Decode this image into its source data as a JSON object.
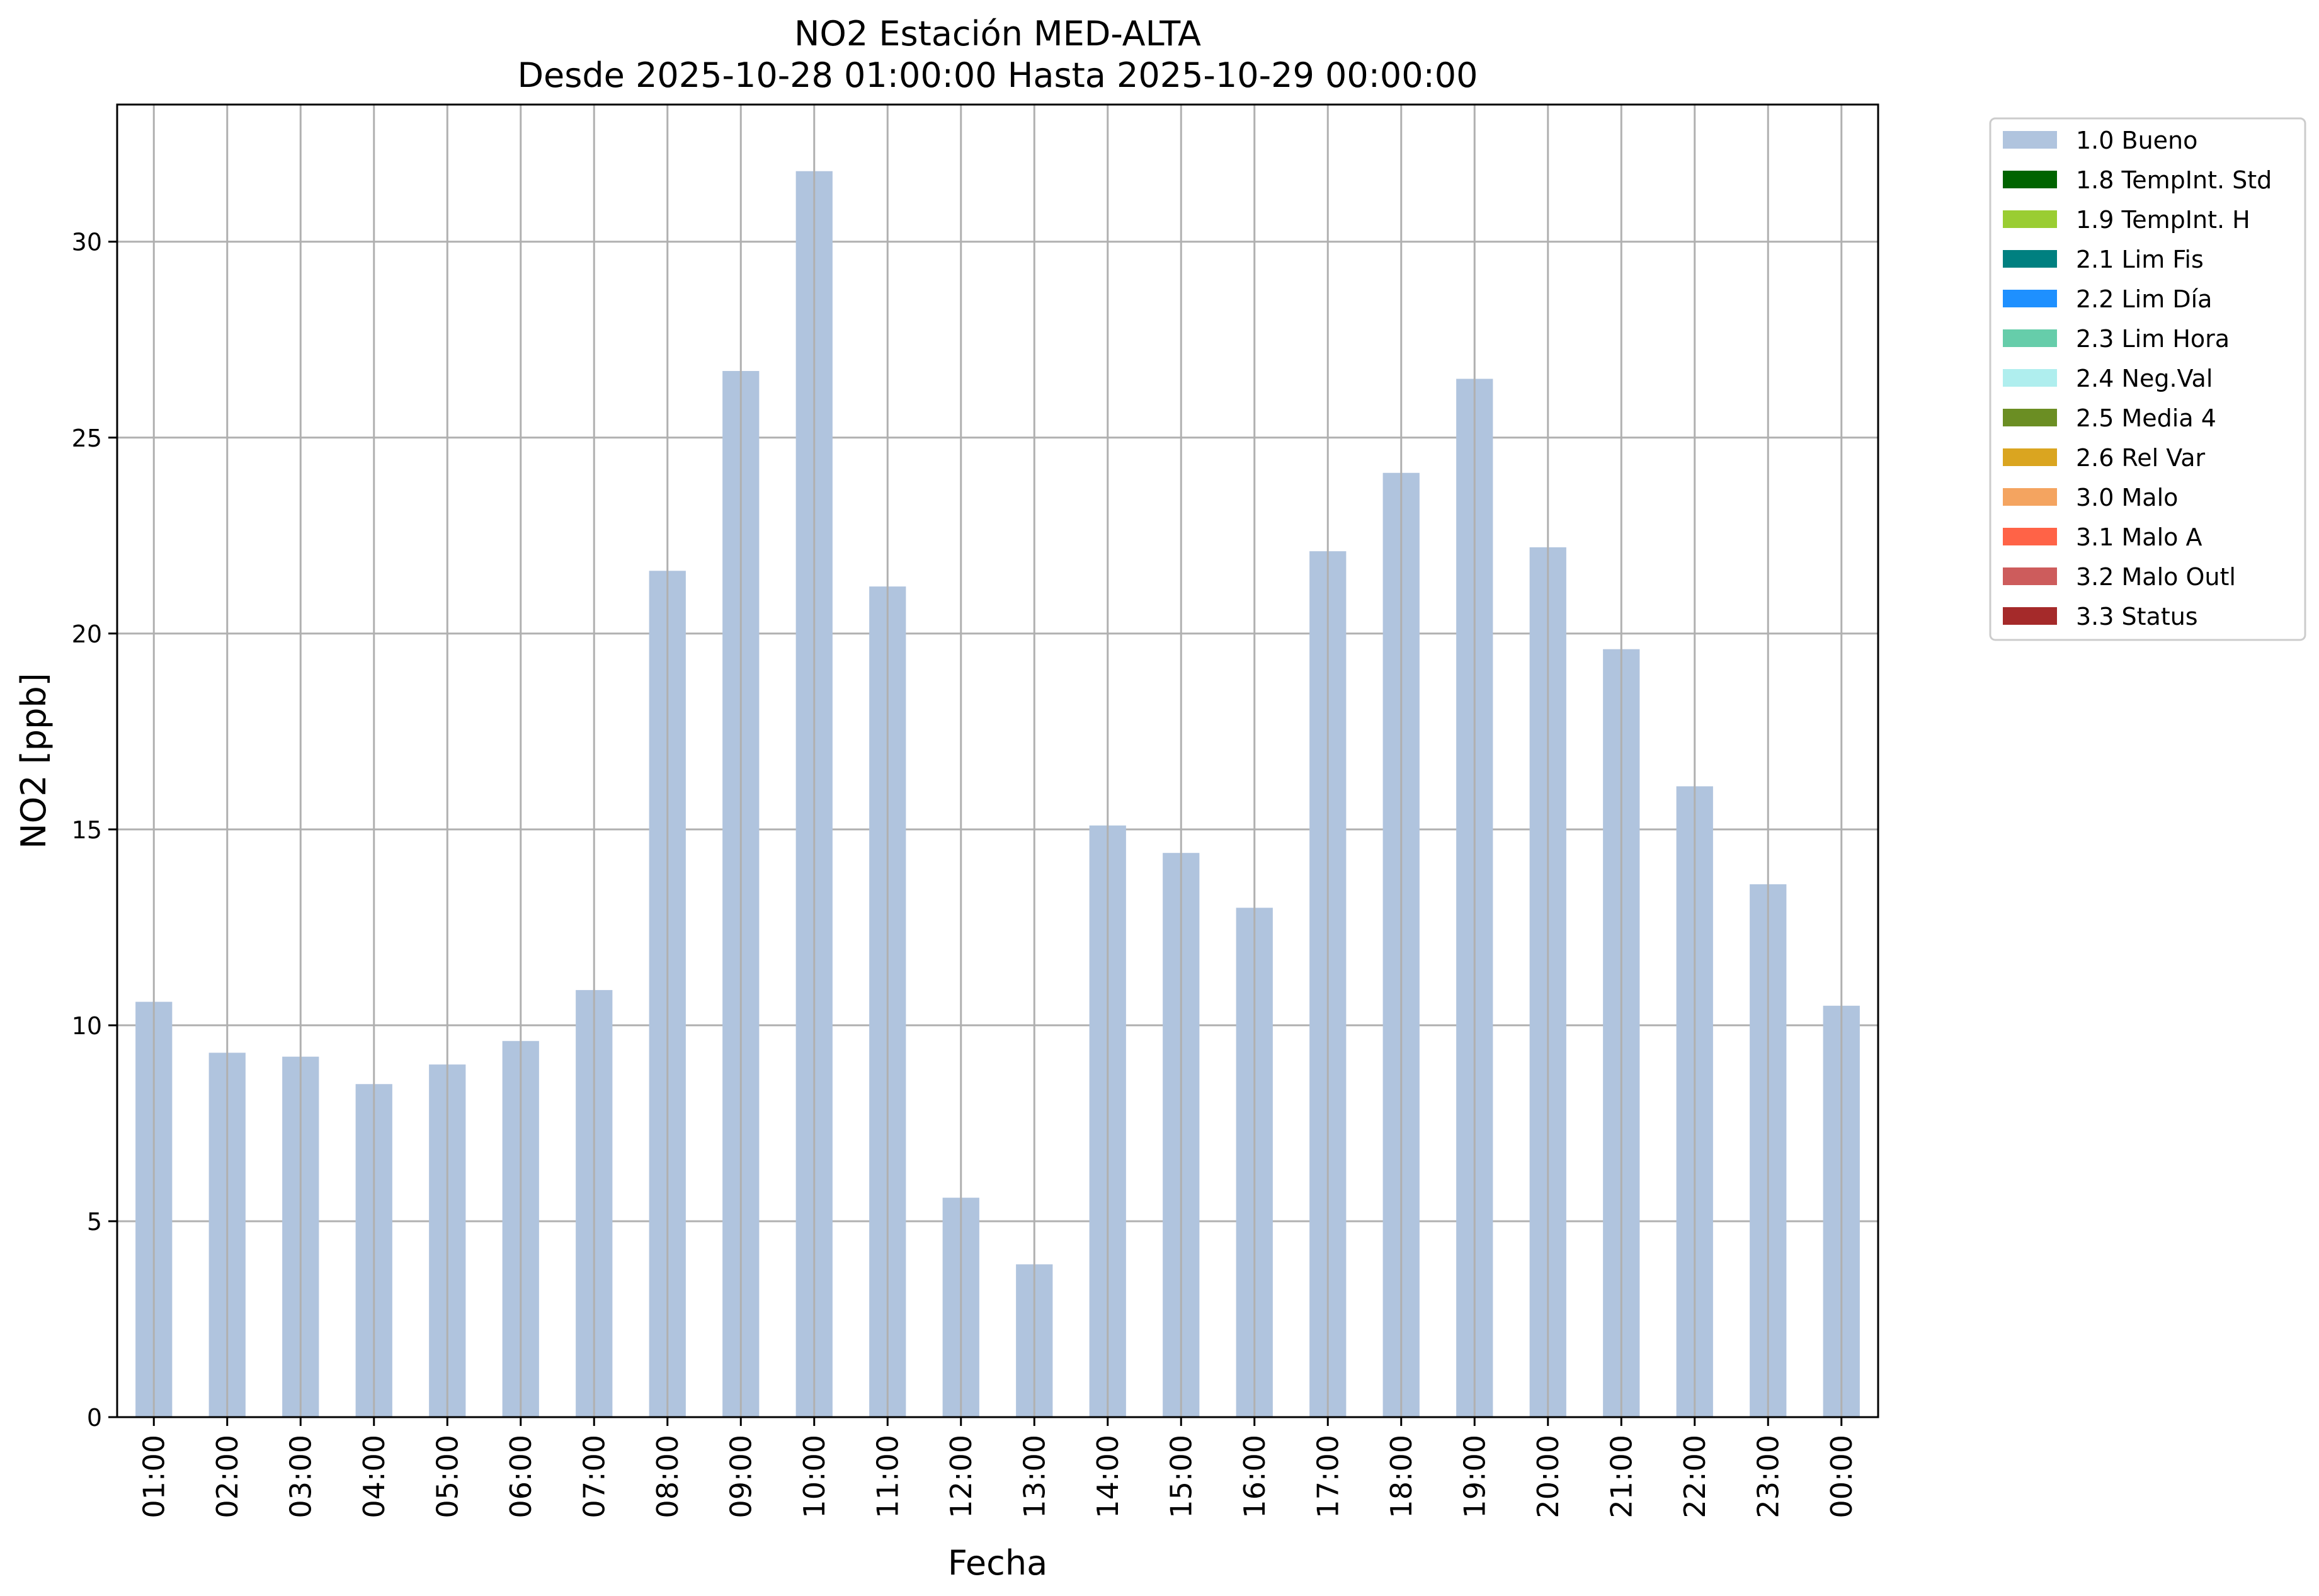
{
  "chart_data": {
    "type": "bar",
    "title": "NO2 Estación MED-ALTA",
    "subtitle": "Desde 2025-10-28 01:00:00 Hasta 2025-10-29 00:00:00",
    "xlabel": "Fecha",
    "ylabel": "NO2 [ppb]",
    "ylim": [
      0,
      33.5
    ],
    "yticks": [
      "0",
      "5",
      "10",
      "15",
      "20",
      "25",
      "30"
    ],
    "grid": true,
    "legend_position": "outside-top-right",
    "categories": [
      "01:00",
      "02:00",
      "03:00",
      "04:00",
      "05:00",
      "06:00",
      "07:00",
      "08:00",
      "09:00",
      "10:00",
      "11:00",
      "12:00",
      "13:00",
      "14:00",
      "15:00",
      "16:00",
      "17:00",
      "18:00",
      "19:00",
      "20:00",
      "21:00",
      "22:00",
      "23:00",
      "00:00"
    ],
    "series": [
      {
        "name": "1.0 Bueno",
        "color": "#b0c4de",
        "values": [
          10.6,
          9.3,
          9.2,
          8.5,
          9.0,
          9.6,
          10.9,
          21.6,
          26.7,
          31.8,
          21.2,
          5.6,
          3.9,
          15.1,
          14.4,
          13.0,
          22.1,
          24.1,
          26.5,
          22.2,
          19.6,
          16.1,
          13.6,
          10.5
        ]
      }
    ],
    "legend": [
      {
        "label": "1.0 Bueno",
        "color": "#b0c4de"
      },
      {
        "label": "1.8 TempInt. Std",
        "color": "#006400"
      },
      {
        "label": "1.9 TempInt. H",
        "color": "#9acd32"
      },
      {
        "label": "2.1 Lim Fis",
        "color": "#008080"
      },
      {
        "label": "2.2 Lim Día",
        "color": "#1e90ff"
      },
      {
        "label": "2.3 Lim Hora",
        "color": "#66cdaa"
      },
      {
        "label": "2.4 Neg.Val",
        "color": "#afeeee"
      },
      {
        "label": "2.5 Media 4",
        "color": "#6b8e23"
      },
      {
        "label": "2.6 Rel Var",
        "color": "#daa520"
      },
      {
        "label": "3.0 Malo",
        "color": "#f4a460"
      },
      {
        "label": "3.1 Malo A",
        "color": "#ff6347"
      },
      {
        "label": "3.2 Malo Outl",
        "color": "#cd5c5c"
      },
      {
        "label": "3.3 Status",
        "color": "#a52a2a"
      }
    ]
  }
}
